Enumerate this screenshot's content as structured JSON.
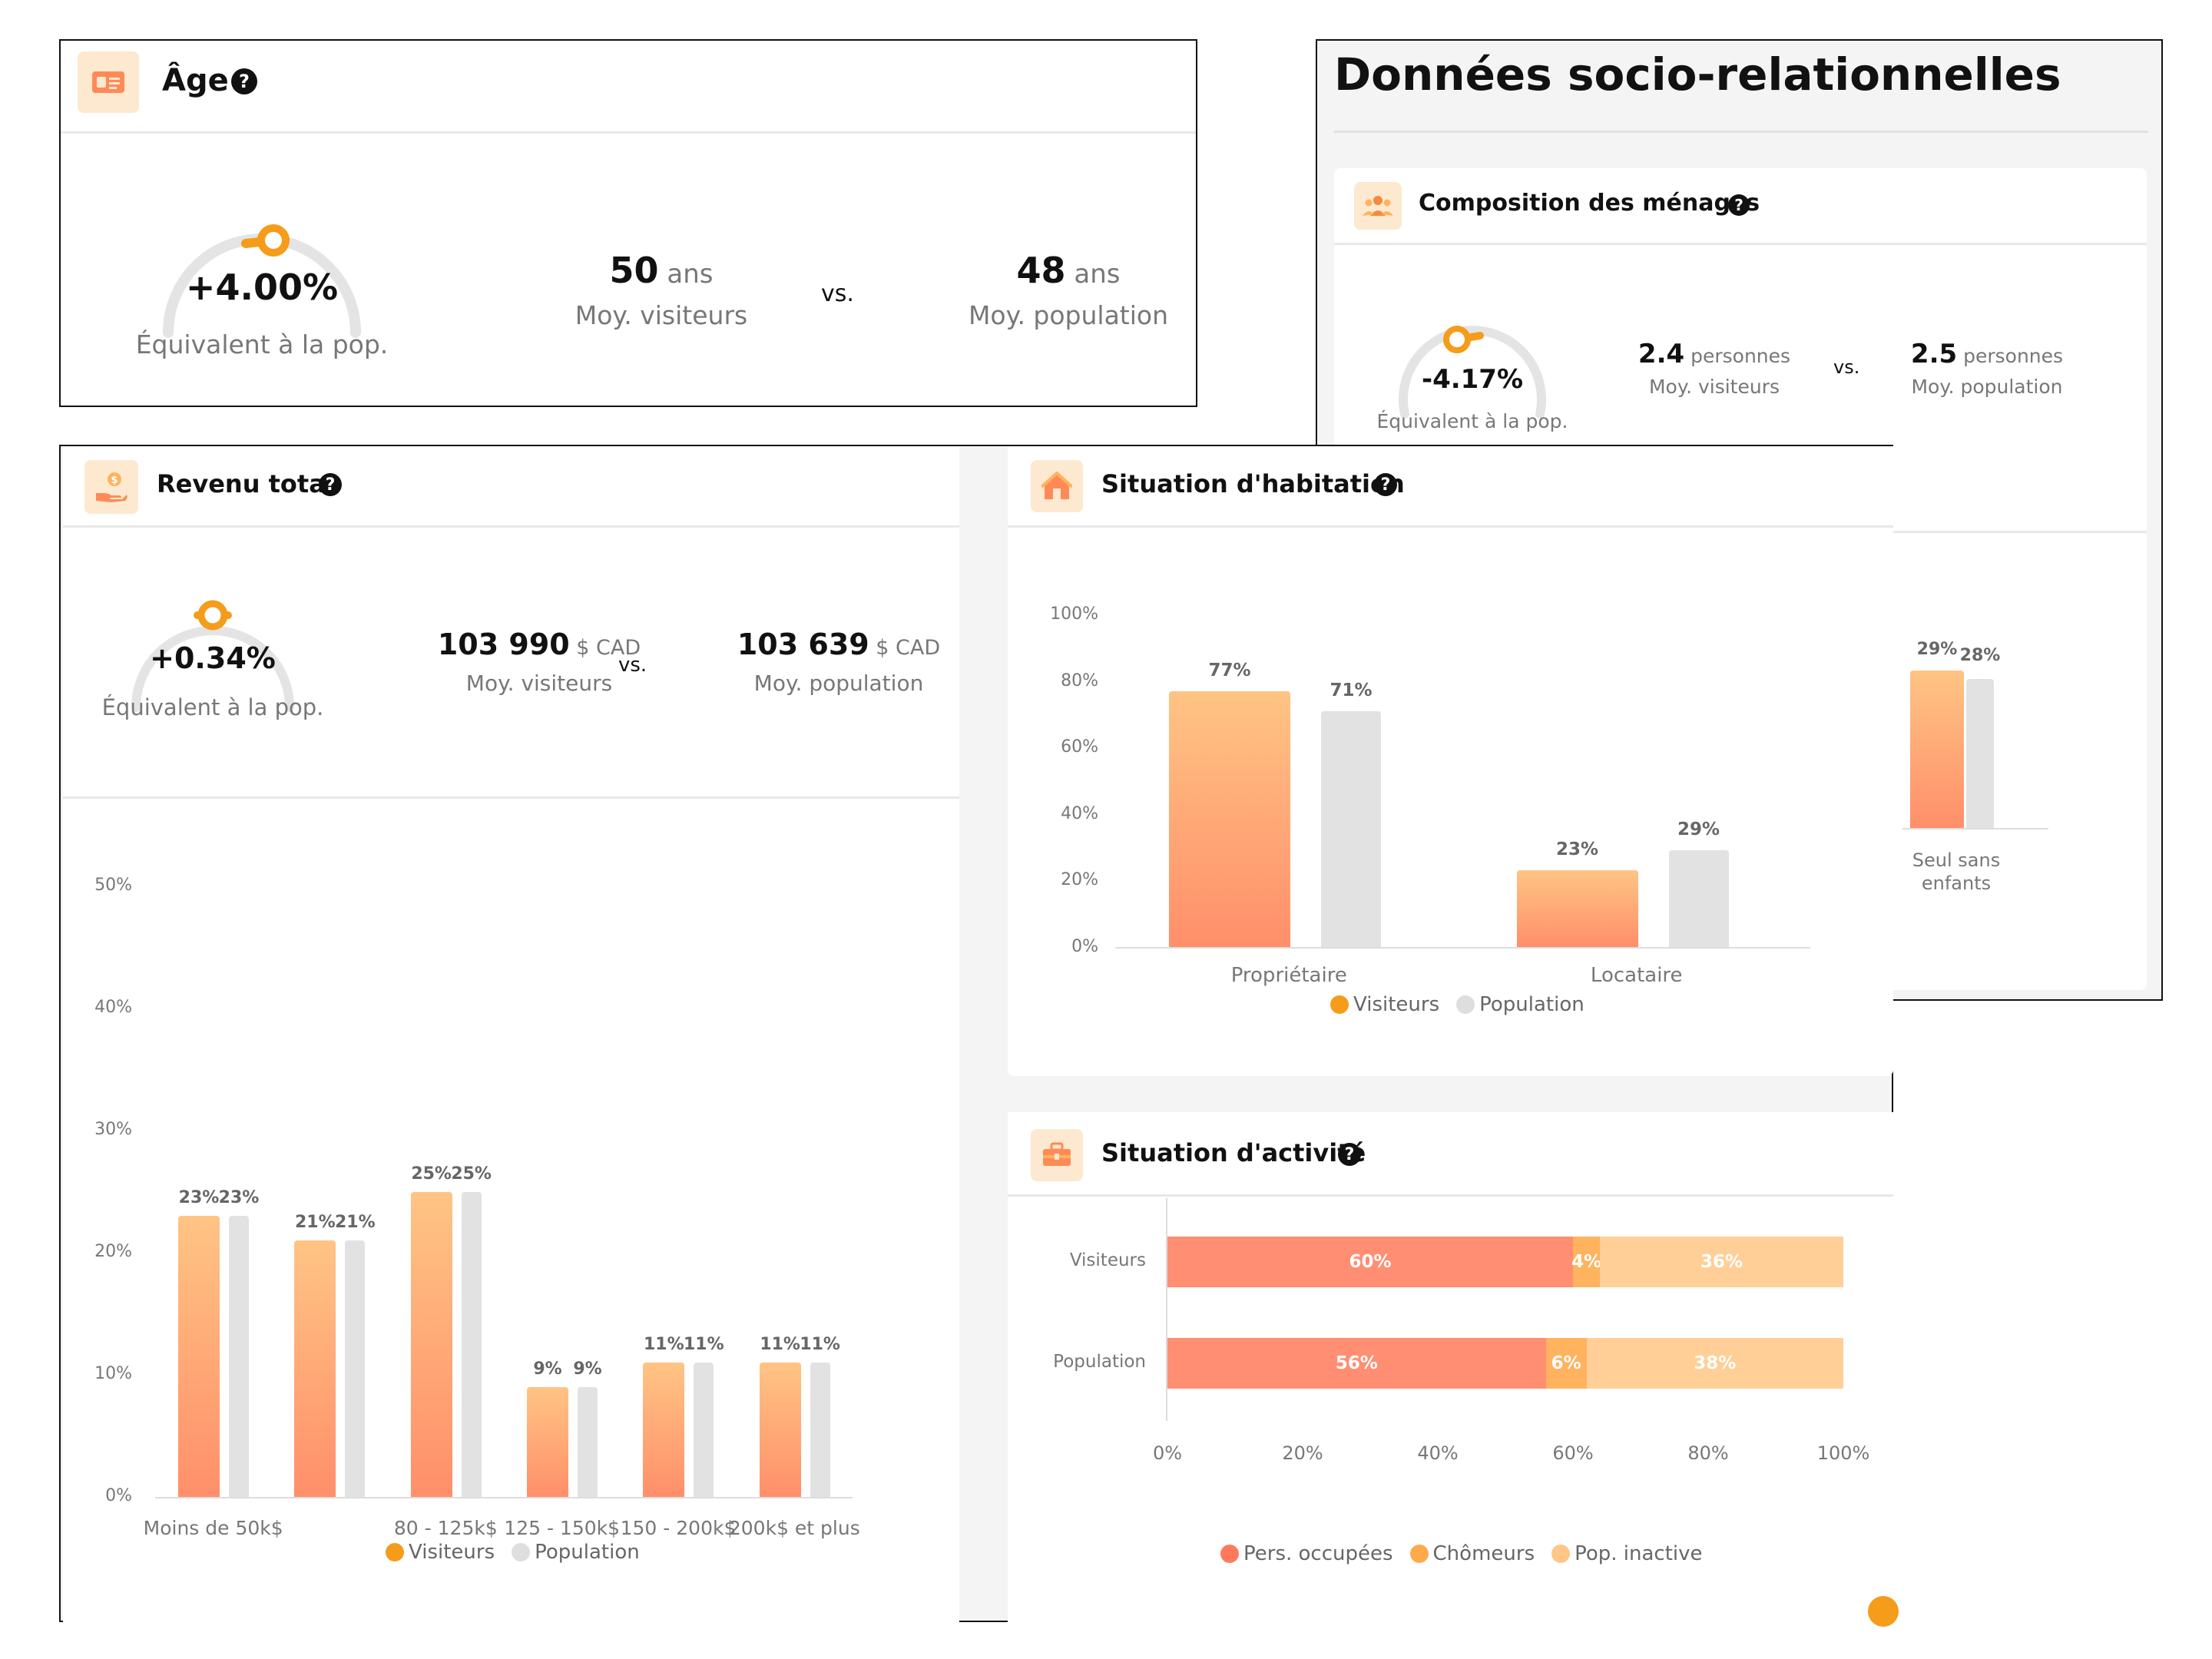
{
  "age": {
    "title": "Âge",
    "gauge_value": "+4.00%",
    "gauge_sub": "Équivalent à la pop.",
    "visitors_value": "50",
    "visitors_unit": "ans",
    "visitors_label": "Moy. visiteurs",
    "vs": "vs.",
    "pop_value": "48",
    "pop_unit": "ans",
    "pop_label": "Moy. population"
  },
  "socio": {
    "title": "Données socio-relationnelles",
    "composition": {
      "title": "Composition des ménages",
      "gauge_value": "-4.17%",
      "gauge_sub": "Équivalent à la pop.",
      "visitors_value": "2.4",
      "visitors_unit": "personnes",
      "visitors_label": "Moy. visiteurs",
      "vs": "vs.",
      "pop_value": "2.5",
      "pop_unit": "personnes",
      "pop_label": "Moy. population"
    },
    "partial_chart": {
      "label_v": "29%",
      "label_p": "28%",
      "category": "Seul sans enfants",
      "value_v": 29,
      "value_p": 28
    }
  },
  "revenu": {
    "title": "Revenu total",
    "gauge_value": "+0.34%",
    "gauge_sub": "Équivalent à la pop.",
    "visitors_value": "103 990",
    "visitors_unit": "$ CAD",
    "visitors_label": "Moy. visiteurs",
    "vs": "vs.",
    "pop_value": "103 639",
    "pop_unit": "$ CAD",
    "pop_label": "Moy. population",
    "legend_v": "Visiteurs",
    "legend_p": "Population"
  },
  "habitation": {
    "title": "Situation d'habitation",
    "legend_v": "Visiteurs",
    "legend_p": "Population"
  },
  "activite": {
    "title": "Situation d'activité",
    "legend": [
      "Pers. occupées",
      "Chômeurs",
      "Pop. inactive"
    ]
  },
  "colors": {
    "accent": "#f59c1a",
    "bar_top": "#ffc484",
    "bar_bottom": "#ff8f6a",
    "population": "#e2e2e2",
    "occupees": "#ff8e72",
    "chomeurs": "#ffb35e",
    "inactive": "#ffcf97"
  },
  "chart_data": [
    {
      "type": "bar",
      "title": "Revenu total",
      "categories": [
        "Moins de 50k$",
        "",
        "80 - 125k$",
        "125 - 150k$",
        "150 - 200k$",
        "200k$ et plus"
      ],
      "series": [
        {
          "name": "Visiteurs",
          "values": [
            23,
            21,
            25,
            9,
            11,
            11
          ]
        },
        {
          "name": "Population",
          "values": [
            23,
            21,
            25,
            9,
            11,
            11
          ]
        }
      ],
      "yticks": [
        "0%",
        "10%",
        "20%",
        "30%",
        "40%",
        "50%"
      ],
      "ylim": [
        0,
        50
      ]
    },
    {
      "type": "bar",
      "title": "Situation d'habitation",
      "categories": [
        "Propriétaire",
        "Locataire"
      ],
      "series": [
        {
          "name": "Visiteurs",
          "values": [
            77,
            23
          ]
        },
        {
          "name": "Population",
          "values": [
            71,
            29
          ]
        }
      ],
      "yticks": [
        "0%",
        "20%",
        "40%",
        "60%",
        "80%",
        "100%"
      ],
      "ylim": [
        0,
        100
      ]
    },
    {
      "type": "bar",
      "orientation": "horizontal-stacked",
      "title": "Situation d'activité",
      "categories": [
        "Visiteurs",
        "Population"
      ],
      "series": [
        {
          "name": "Pers. occupées",
          "values": [
            60,
            56
          ]
        },
        {
          "name": "Chômeurs",
          "values": [
            4,
            6
          ]
        },
        {
          "name": "Pop. inactive",
          "values": [
            36,
            38
          ]
        }
      ],
      "xticks": [
        "0%",
        "20%",
        "40%",
        "60%",
        "80%",
        "100%"
      ],
      "xlim": [
        0,
        100
      ]
    }
  ]
}
